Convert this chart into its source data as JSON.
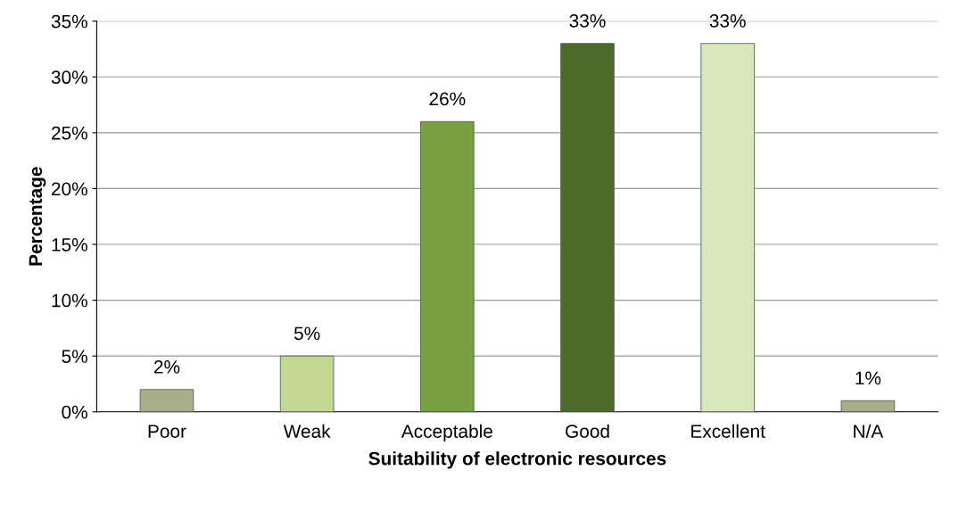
{
  "chart_data": {
    "type": "bar",
    "xlabel": "Suitability of electronic resources",
    "ylabel": "Percentage",
    "categories": [
      "Poor",
      "Weak",
      "Acceptable",
      "Good",
      "Excellent",
      "N/A"
    ],
    "values": [
      2,
      5,
      26,
      33,
      33,
      1
    ],
    "colors": [
      "#a7ae8a",
      "#c3d890",
      "#78a040",
      "#4e6a2a",
      "#d8e8bb",
      "#a7ae8a"
    ],
    "data_labels": true,
    "value_labels": [
      "2%",
      "5%",
      "26%",
      "33%",
      "33%",
      "1%"
    ],
    "ylim": [
      0,
      35
    ],
    "yticks": [
      {
        "value": 0,
        "label": "0%"
      },
      {
        "value": 5,
        "label": "5%"
      },
      {
        "value": 10,
        "label": "10%"
      },
      {
        "value": 15,
        "label": "15%"
      },
      {
        "value": 20,
        "label": "20%"
      },
      {
        "value": 25,
        "label": "25%"
      },
      {
        "value": 30,
        "label": "30%"
      },
      {
        "value": 35,
        "label": "35%"
      }
    ],
    "grid": "y"
  }
}
